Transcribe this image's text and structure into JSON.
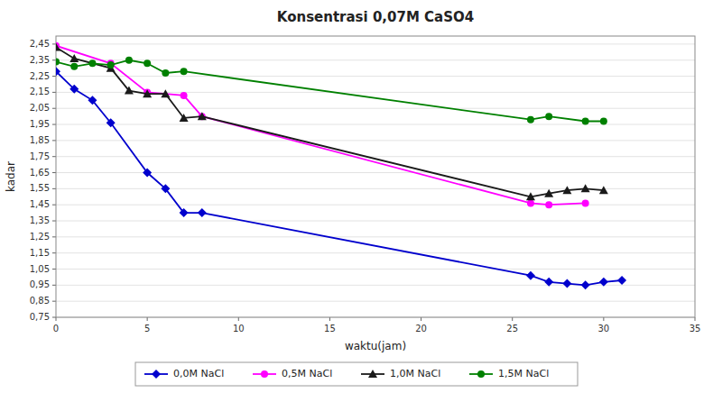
{
  "chart_data": {
    "type": "line",
    "title": "Konsentrasi 0,07M CaSO4",
    "x_label": "waktu(jam)",
    "y_label": "kadar",
    "xlim": [
      0,
      35
    ],
    "ylim": [
      0.75,
      2.5
    ],
    "xticks": [
      0,
      5,
      10,
      15,
      20,
      25,
      30,
      35
    ],
    "yticks": [
      {
        "value": 0.75,
        "label": "0,75"
      },
      {
        "value": 0.85,
        "label": "0,85"
      },
      {
        "value": 0.95,
        "label": "0,95"
      },
      {
        "value": 1.05,
        "label": "1,05"
      },
      {
        "value": 1.15,
        "label": "1,15"
      },
      {
        "value": 1.25,
        "label": "1,25"
      },
      {
        "value": 1.35,
        "label": "1,35"
      },
      {
        "value": 1.45,
        "label": "1,45"
      },
      {
        "value": 1.55,
        "label": "1,55"
      },
      {
        "value": 1.65,
        "label": "1,65"
      },
      {
        "value": 1.75,
        "label": "1,75"
      },
      {
        "value": 1.85,
        "label": "1,85"
      },
      {
        "value": 1.95,
        "label": "1,95"
      },
      {
        "value": 2.05,
        "label": "2,05"
      },
      {
        "value": 2.15,
        "label": "2,15"
      },
      {
        "value": 2.25,
        "label": "2,25"
      },
      {
        "value": 2.35,
        "label": "2,35"
      },
      {
        "value": 2.45,
        "label": "2,45"
      }
    ],
    "grid": true,
    "legend": "bottom",
    "series": [
      {
        "name": "0,0M NaCl",
        "color": "#0000CD",
        "marker": "diamond",
        "x": [
          0,
          1,
          2,
          3,
          5,
          6,
          7,
          8,
          26,
          27,
          28,
          29,
          30,
          31
        ],
        "values": [
          2.28,
          2.17,
          2.1,
          1.96,
          1.65,
          1.55,
          1.4,
          1.4,
          1.01,
          0.97,
          0.96,
          0.95,
          0.97,
          0.98
        ]
      },
      {
        "name": "0,5M NaCl",
        "color": "#FF00FF",
        "marker": "circle",
        "x": [
          0,
          3,
          5,
          7,
          8,
          26,
          27,
          29
        ],
        "values": [
          2.44,
          2.33,
          2.15,
          2.13,
          2.0,
          1.46,
          1.45,
          1.46
        ]
      },
      {
        "name": "1,0M NaCl",
        "color": "#1a1a1a",
        "marker": "triangle",
        "x": [
          0,
          1,
          3,
          4,
          5,
          6,
          7,
          8,
          26,
          27,
          28,
          29,
          30
        ],
        "values": [
          2.43,
          2.36,
          2.3,
          2.16,
          2.14,
          2.14,
          1.99,
          2.0,
          1.5,
          1.52,
          1.54,
          1.55,
          1.54
        ]
      },
      {
        "name": "1,5M NaCl",
        "color": "#008000",
        "marker": "circle",
        "x": [
          0,
          1,
          2,
          3,
          4,
          5,
          6,
          7,
          26,
          27,
          29,
          30
        ],
        "values": [
          2.34,
          2.31,
          2.33,
          2.32,
          2.35,
          2.33,
          2.27,
          2.28,
          1.98,
          2.0,
          1.97,
          1.97
        ]
      }
    ]
  }
}
